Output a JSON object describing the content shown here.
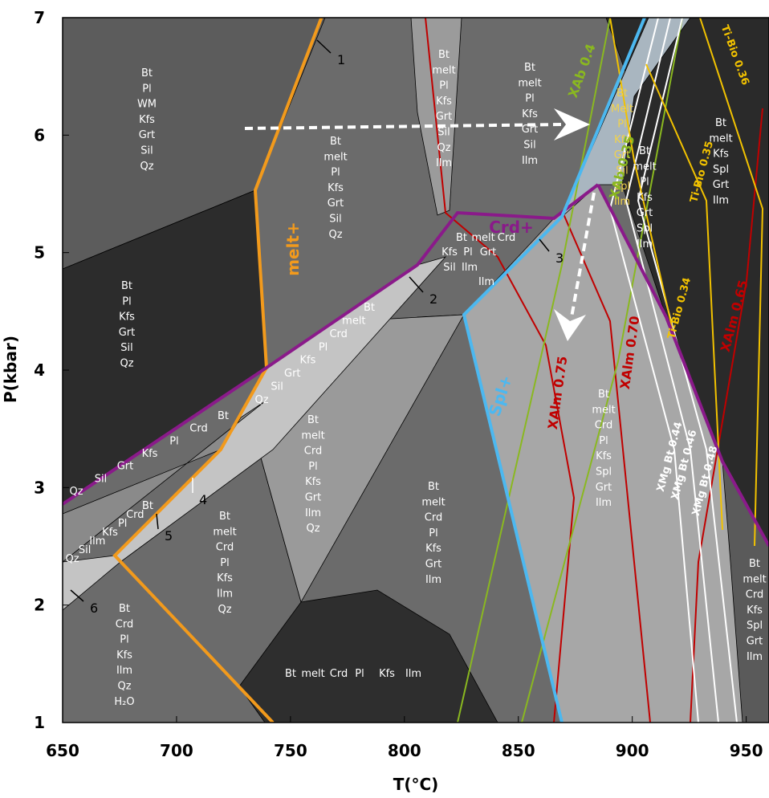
{
  "chart_data": {
    "type": "pseudosection",
    "x_label": "T(°C)",
    "y_label": "P(kbar)",
    "xlim": [
      650,
      960
    ],
    "ylim": [
      1,
      7
    ],
    "xticks": [
      650,
      700,
      750,
      800,
      850,
      900,
      950
    ],
    "yticks": [
      1,
      2,
      3,
      4,
      5,
      6,
      7
    ],
    "fields": [
      [
        "Bt",
        "Pl",
        "WM",
        "Kfs",
        "Grt",
        "Sil",
        "Qz"
      ],
      [
        "Bt",
        "melt",
        "Pl",
        "Kfs",
        "Grt",
        "Sil",
        "Qz"
      ],
      [
        "Bt",
        "melt",
        "Pl",
        "Kfs",
        "Grt",
        "Sil",
        "Qz",
        "Ilm"
      ],
      [
        "Bt",
        "melt",
        "Pl",
        "Kfs",
        "Grt",
        "Sil",
        "Ilm"
      ],
      [
        "Bt",
        "Melt",
        "Pl",
        "Kfs",
        "Grt",
        "Sil",
        "Spl",
        "Ilm"
      ],
      [
        "Bt",
        "melt",
        "Pl",
        "Kfs",
        "Grt",
        "Spl",
        "Ilm"
      ],
      [
        "Bt",
        "melt",
        "Kfs",
        "Spl",
        "Grt",
        "Ilm"
      ],
      [
        "Bt",
        "Pl",
        "Kfs",
        "Grt",
        "Sil",
        "Qz"
      ],
      [
        "Bt",
        "melt",
        "Crd",
        "Pl",
        "Kfs",
        "Grt",
        "Ilm",
        "Qz"
      ],
      [
        "Bt",
        "melt",
        "Crd",
        "Pl",
        "Kfs",
        "Grt",
        "Ilm"
      ],
      [
        "Bt",
        "melt",
        "Crd",
        "Pl",
        "Kfs",
        "Spl",
        "Grt",
        "Ilm"
      ],
      [
        "Bt",
        "melt",
        "Crd",
        "Kfs",
        "Spl",
        "Grt",
        "Ilm"
      ],
      [
        "Bt",
        "melt",
        "Crd",
        "Pl",
        "Kfs",
        "Ilm",
        "Qz"
      ],
      [
        "Bt",
        "Crd",
        "Pl",
        "Kfs",
        "Ilm",
        "Qz",
        "H₂O"
      ],
      [
        "Bt",
        "melt",
        "Crd",
        "Pl",
        "Kfs",
        "Ilm"
      ]
    ],
    "diagonal_fields": [
      [
        "Bt",
        "melt",
        "Crd",
        "Pl",
        "Kfs",
        "Grt",
        "Sil",
        "Qz"
      ],
      [
        "Bt",
        "Crd",
        "Pl",
        "Kfs",
        "Grt",
        "Sil",
        "Qz"
      ],
      [
        "Bt",
        "Crd",
        "Pl",
        "Kfs",
        "Ilm",
        "Sil",
        "Qz"
      ],
      [
        "Bt",
        "melt",
        "Crd",
        "Pl",
        "Kfs",
        "Grt",
        "Sil",
        "Ilm",
        "Ilm"
      ]
    ],
    "boundary_labels": [
      "melt+",
      "Crd+",
      "Spl+"
    ],
    "isopleth_labels": [
      "XAlm 0.75",
      "XAlm 0.70",
      "XAlm 0.65",
      "XAb 0.4",
      "XAb 0.35",
      "XMg Bt 0.44",
      "XMg Bt 0.46",
      "XMg Bt 0.48",
      "Ti-Bio 0.36",
      "Ti-Bio 0.35",
      "Ti-Bio 0.34"
    ],
    "callouts": [
      "1",
      "2",
      "3",
      "4",
      "5",
      "6"
    ]
  }
}
